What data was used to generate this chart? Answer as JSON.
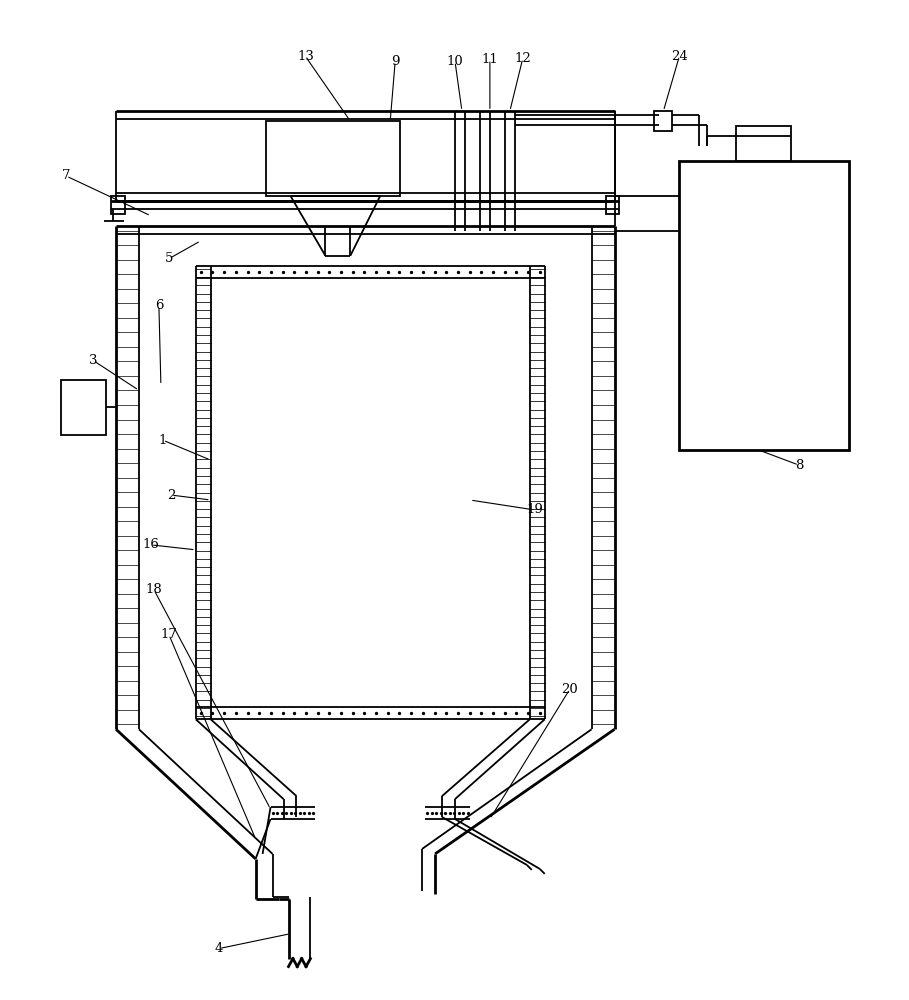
{
  "bg_color": "#ffffff",
  "lw": 1.3,
  "lw_thick": 2.0,
  "lw_thin": 0.7
}
